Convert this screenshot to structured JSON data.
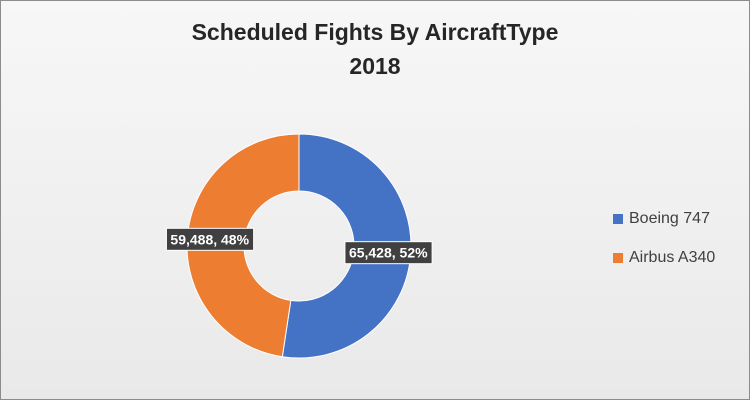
{
  "chart_data": {
    "type": "pie",
    "variant": "donut",
    "title": "Scheduled Fights By AircraftType",
    "subtitle": "2018",
    "categories": [
      "Boeing 747",
      "Airbus A340"
    ],
    "values": [
      65428,
      59488
    ],
    "value_labels": [
      "65,428",
      "59,488"
    ],
    "percent_labels": [
      "52%",
      "48%"
    ],
    "colors": [
      "#4472C4",
      "#ED7D31"
    ],
    "legend_position": "right"
  }
}
